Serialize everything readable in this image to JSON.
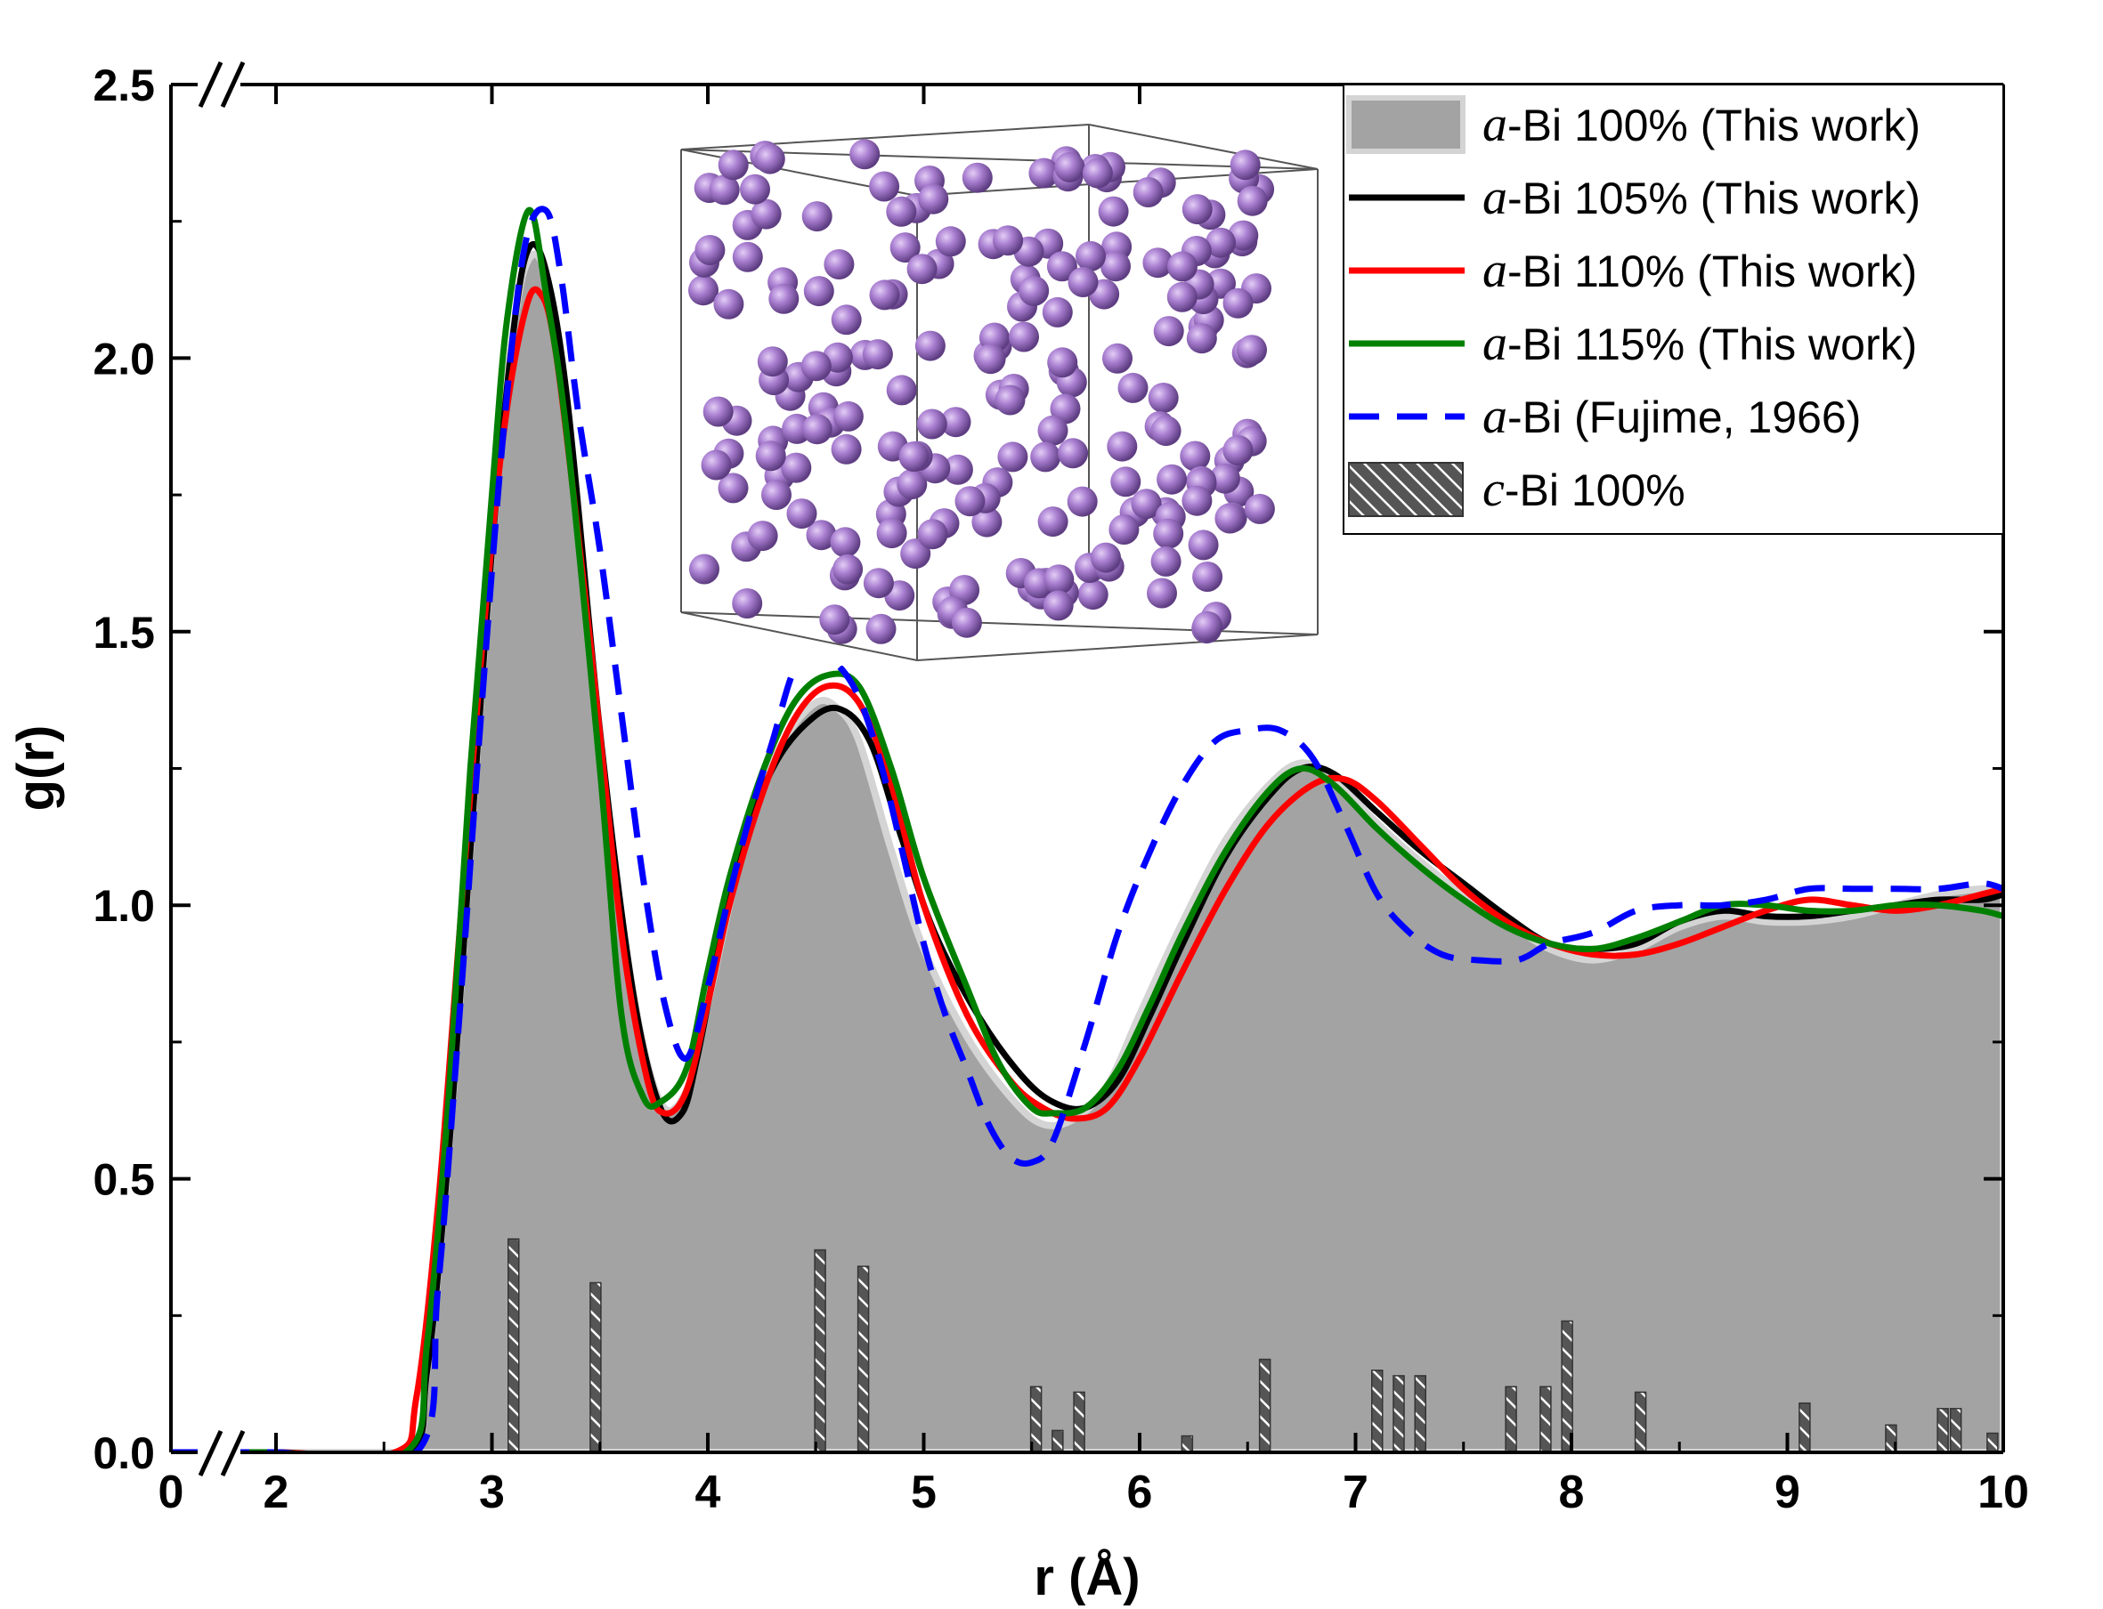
{
  "chart_data": {
    "type": "line",
    "xlabel": "r (Å)",
    "ylabel": "g(r)",
    "xlim": [
      0,
      10
    ],
    "ylim": [
      0,
      2.5
    ],
    "axis_break": {
      "axis": "x",
      "after": 0,
      "resume": 2
    },
    "x_ticks": [
      {
        "value": 0,
        "label": "0"
      },
      {
        "value": 2,
        "label": "2"
      },
      {
        "value": 3,
        "label": "3"
      },
      {
        "value": 4,
        "label": "4"
      },
      {
        "value": 5,
        "label": "5"
      },
      {
        "value": 6,
        "label": "6"
      },
      {
        "value": 7,
        "label": "7"
      },
      {
        "value": 8,
        "label": "8"
      },
      {
        "value": 9,
        "label": "9"
      },
      {
        "value": 10,
        "label": "10"
      }
    ],
    "y_ticks": [
      {
        "value": 0,
        "label": "0.0"
      },
      {
        "value": 0.5,
        "label": "0.5"
      },
      {
        "value": 1.0,
        "label": "1.0"
      },
      {
        "value": 1.5,
        "label": "1.5"
      },
      {
        "value": 2.0,
        "label": "2.0"
      },
      {
        "value": 2.5,
        "label": "2.5"
      }
    ],
    "legend_position": "top-right",
    "series": [
      {
        "name": "a-Bi 100% (This work)",
        "prefix": "a",
        "suffix": "-Bi 100% (This work)",
        "style": "area",
        "color": "#a3a3a3",
        "points": [
          [
            0,
            0
          ],
          [
            2,
            0
          ],
          [
            2.6,
            0
          ],
          [
            2.7,
            0.15
          ],
          [
            2.8,
            0.55
          ],
          [
            2.9,
            1.1
          ],
          [
            3.0,
            1.65
          ],
          [
            3.1,
            2.05
          ],
          [
            3.17,
            2.18
          ],
          [
            3.25,
            2.15
          ],
          [
            3.35,
            1.9
          ],
          [
            3.5,
            1.3
          ],
          [
            3.65,
            0.85
          ],
          [
            3.78,
            0.64
          ],
          [
            3.9,
            0.66
          ],
          [
            4.0,
            0.82
          ],
          [
            4.1,
            1.0
          ],
          [
            4.2,
            1.16
          ],
          [
            4.35,
            1.3
          ],
          [
            4.5,
            1.37
          ],
          [
            4.6,
            1.36
          ],
          [
            4.7,
            1.3
          ],
          [
            4.85,
            1.1
          ],
          [
            5.0,
            0.92
          ],
          [
            5.2,
            0.76
          ],
          [
            5.4,
            0.65
          ],
          [
            5.55,
            0.6
          ],
          [
            5.7,
            0.61
          ],
          [
            5.85,
            0.67
          ],
          [
            6.0,
            0.8
          ],
          [
            6.2,
            0.97
          ],
          [
            6.4,
            1.12
          ],
          [
            6.6,
            1.22
          ],
          [
            6.75,
            1.26
          ],
          [
            6.9,
            1.23
          ],
          [
            7.1,
            1.15
          ],
          [
            7.3,
            1.08
          ],
          [
            7.5,
            1.02
          ],
          [
            7.7,
            0.97
          ],
          [
            7.9,
            0.92
          ],
          [
            8.1,
            0.9
          ],
          [
            8.3,
            0.92
          ],
          [
            8.5,
            0.96
          ],
          [
            8.7,
            0.98
          ],
          [
            8.9,
            0.97
          ],
          [
            9.1,
            0.97
          ],
          [
            9.3,
            0.98
          ],
          [
            9.5,
            1.0
          ],
          [
            9.7,
            1.02
          ],
          [
            9.9,
            1.03
          ],
          [
            10.0,
            1.03
          ]
        ]
      },
      {
        "name": "a-Bi 105% (This work)",
        "prefix": "a",
        "suffix": "-Bi 105% (This work)",
        "style": "solid",
        "color": "#000000",
        "points": [
          [
            0,
            0
          ],
          [
            2,
            0
          ],
          [
            2.6,
            0
          ],
          [
            2.7,
            0.15
          ],
          [
            2.8,
            0.55
          ],
          [
            2.9,
            1.1
          ],
          [
            3.0,
            1.65
          ],
          [
            3.1,
            2.05
          ],
          [
            3.17,
            2.2
          ],
          [
            3.25,
            2.16
          ],
          [
            3.35,
            1.92
          ],
          [
            3.5,
            1.32
          ],
          [
            3.65,
            0.85
          ],
          [
            3.78,
            0.63
          ],
          [
            3.88,
            0.62
          ],
          [
            3.95,
            0.72
          ],
          [
            4.05,
            0.92
          ],
          [
            4.15,
            1.1
          ],
          [
            4.3,
            1.25
          ],
          [
            4.45,
            1.33
          ],
          [
            4.6,
            1.36
          ],
          [
            4.75,
            1.3
          ],
          [
            4.9,
            1.12
          ],
          [
            5.05,
            0.95
          ],
          [
            5.25,
            0.8
          ],
          [
            5.45,
            0.69
          ],
          [
            5.6,
            0.64
          ],
          [
            5.75,
            0.63
          ],
          [
            5.9,
            0.68
          ],
          [
            6.05,
            0.8
          ],
          [
            6.2,
            0.93
          ],
          [
            6.4,
            1.09
          ],
          [
            6.6,
            1.2
          ],
          [
            6.75,
            1.25
          ],
          [
            6.9,
            1.24
          ],
          [
            7.1,
            1.17
          ],
          [
            7.3,
            1.1
          ],
          [
            7.5,
            1.04
          ],
          [
            7.7,
            0.98
          ],
          [
            7.9,
            0.93
          ],
          [
            8.1,
            0.92
          ],
          [
            8.3,
            0.93
          ],
          [
            8.5,
            0.97
          ],
          [
            8.7,
            0.99
          ],
          [
            8.9,
            0.98
          ],
          [
            9.1,
            0.98
          ],
          [
            9.3,
            0.99
          ],
          [
            9.5,
            1.0
          ],
          [
            9.7,
            1.01
          ],
          [
            9.9,
            1.01
          ],
          [
            10.0,
            1.02
          ]
        ]
      },
      {
        "name": "a-Bi 110% (This work)",
        "prefix": "a",
        "suffix": "-Bi 110% (This work)",
        "style": "solid",
        "color": "#ff0000",
        "points": [
          [
            0,
            0
          ],
          [
            2,
            0
          ],
          [
            2.55,
            0
          ],
          [
            2.65,
            0.1
          ],
          [
            2.75,
            0.45
          ],
          [
            2.85,
            0.95
          ],
          [
            2.95,
            1.45
          ],
          [
            3.05,
            1.85
          ],
          [
            3.15,
            2.08
          ],
          [
            3.22,
            2.12
          ],
          [
            3.3,
            2.0
          ],
          [
            3.45,
            1.5
          ],
          [
            3.6,
            0.95
          ],
          [
            3.72,
            0.68
          ],
          [
            3.8,
            0.62
          ],
          [
            3.9,
            0.66
          ],
          [
            4.0,
            0.82
          ],
          [
            4.1,
            1.0
          ],
          [
            4.25,
            1.2
          ],
          [
            4.4,
            1.34
          ],
          [
            4.55,
            1.4
          ],
          [
            4.7,
            1.37
          ],
          [
            4.85,
            1.22
          ],
          [
            5.0,
            1.0
          ],
          [
            5.2,
            0.8
          ],
          [
            5.4,
            0.68
          ],
          [
            5.55,
            0.63
          ],
          [
            5.7,
            0.61
          ],
          [
            5.85,
            0.63
          ],
          [
            6.0,
            0.72
          ],
          [
            6.2,
            0.88
          ],
          [
            6.4,
            1.03
          ],
          [
            6.6,
            1.15
          ],
          [
            6.8,
            1.22
          ],
          [
            6.95,
            1.23
          ],
          [
            7.1,
            1.19
          ],
          [
            7.3,
            1.11
          ],
          [
            7.5,
            1.03
          ],
          [
            7.7,
            0.97
          ],
          [
            7.9,
            0.93
          ],
          [
            8.1,
            0.91
          ],
          [
            8.3,
            0.91
          ],
          [
            8.5,
            0.93
          ],
          [
            8.7,
            0.96
          ],
          [
            8.9,
            0.99
          ],
          [
            9.1,
            1.01
          ],
          [
            9.3,
            1.0
          ],
          [
            9.5,
            0.99
          ],
          [
            9.7,
            1.0
          ],
          [
            9.9,
            1.02
          ],
          [
            10.0,
            1.03
          ]
        ]
      },
      {
        "name": "a-Bi 115% (This work)",
        "prefix": "a",
        "suffix": "-Bi 115% (This work)",
        "style": "solid",
        "color": "#008000",
        "points": [
          [
            0,
            0
          ],
          [
            2,
            0
          ],
          [
            2.6,
            0
          ],
          [
            2.7,
            0.2
          ],
          [
            2.8,
            0.65
          ],
          [
            2.9,
            1.25
          ],
          [
            3.0,
            1.75
          ],
          [
            3.07,
            2.07
          ],
          [
            3.17,
            2.27
          ],
          [
            3.25,
            2.12
          ],
          [
            3.35,
            1.85
          ],
          [
            3.5,
            1.25
          ],
          [
            3.6,
            0.8
          ],
          [
            3.7,
            0.65
          ],
          [
            3.78,
            0.64
          ],
          [
            3.9,
            0.7
          ],
          [
            4.0,
            0.88
          ],
          [
            4.1,
            1.05
          ],
          [
            4.25,
            1.24
          ],
          [
            4.4,
            1.37
          ],
          [
            4.55,
            1.42
          ],
          [
            4.7,
            1.4
          ],
          [
            4.85,
            1.25
          ],
          [
            5.0,
            1.05
          ],
          [
            5.2,
            0.85
          ],
          [
            5.35,
            0.71
          ],
          [
            5.5,
            0.63
          ],
          [
            5.6,
            0.62
          ],
          [
            5.75,
            0.63
          ],
          [
            5.9,
            0.7
          ],
          [
            6.05,
            0.82
          ],
          [
            6.2,
            0.95
          ],
          [
            6.4,
            1.1
          ],
          [
            6.6,
            1.21
          ],
          [
            6.75,
            1.25
          ],
          [
            6.9,
            1.22
          ],
          [
            7.1,
            1.14
          ],
          [
            7.3,
            1.07
          ],
          [
            7.5,
            1.01
          ],
          [
            7.7,
            0.96
          ],
          [
            7.9,
            0.93
          ],
          [
            8.1,
            0.92
          ],
          [
            8.3,
            0.94
          ],
          [
            8.5,
            0.97
          ],
          [
            8.7,
            1.0
          ],
          [
            8.9,
            1.0
          ],
          [
            9.1,
            0.99
          ],
          [
            9.3,
            0.99
          ],
          [
            9.5,
            1.0
          ],
          [
            9.7,
            1.0
          ],
          [
            9.9,
            0.99
          ],
          [
            10.0,
            0.98
          ]
        ]
      },
      {
        "name": "a-Bi (Fujime, 1966)",
        "prefix": "a",
        "suffix": "-Bi (Fujime, 1966)",
        "style": "dashed",
        "color": "#0000ff",
        "points": [
          [
            0,
            0
          ],
          [
            2,
            0
          ],
          [
            2.65,
            0
          ],
          [
            2.75,
            0.3
          ],
          [
            2.85,
            0.8
          ],
          [
            2.95,
            1.35
          ],
          [
            3.05,
            1.85
          ],
          [
            3.15,
            2.2
          ],
          [
            3.25,
            2.27
          ],
          [
            3.32,
            2.15
          ],
          [
            3.4,
            1.9
          ],
          [
            3.5,
            1.65
          ],
          [
            3.6,
            1.35
          ],
          [
            3.7,
            1.05
          ],
          [
            3.8,
            0.82
          ],
          [
            3.9,
            0.72
          ],
          [
            4.0,
            0.85
          ],
          [
            4.1,
            1.02
          ],
          [
            4.2,
            1.17
          ],
          [
            4.3,
            1.3
          ],
          [
            4.4,
            1.43
          ],
          [
            4.5,
            1.46
          ],
          [
            4.6,
            1.44
          ],
          [
            4.7,
            1.38
          ],
          [
            4.8,
            1.26
          ],
          [
            4.9,
            1.1
          ],
          [
            5.0,
            0.93
          ],
          [
            5.1,
            0.8
          ],
          [
            5.2,
            0.7
          ],
          [
            5.3,
            0.6
          ],
          [
            5.4,
            0.54
          ],
          [
            5.5,
            0.53
          ],
          [
            5.6,
            0.57
          ],
          [
            5.75,
            0.75
          ],
          [
            5.9,
            0.95
          ],
          [
            6.05,
            1.1
          ],
          [
            6.2,
            1.22
          ],
          [
            6.35,
            1.3
          ],
          [
            6.5,
            1.32
          ],
          [
            6.65,
            1.32
          ],
          [
            6.8,
            1.27
          ],
          [
            6.95,
            1.15
          ],
          [
            7.1,
            1.02
          ],
          [
            7.25,
            0.95
          ],
          [
            7.4,
            0.91
          ],
          [
            7.55,
            0.9
          ],
          [
            7.75,
            0.9
          ],
          [
            7.9,
            0.93
          ],
          [
            8.1,
            0.95
          ],
          [
            8.3,
            0.99
          ],
          [
            8.5,
            1.0
          ],
          [
            8.7,
            1.0
          ],
          [
            8.9,
            1.01
          ],
          [
            9.1,
            1.03
          ],
          [
            9.3,
            1.03
          ],
          [
            9.5,
            1.03
          ],
          [
            9.7,
            1.03
          ],
          [
            9.9,
            1.04
          ],
          [
            10.0,
            1.03
          ]
        ]
      },
      {
        "name": "c-Bi 100%",
        "prefix": "c",
        "suffix": "-Bi 100%",
        "style": "hatched-bars",
        "color": "#555555",
        "bars": [
          [
            3.1,
            0.39
          ],
          [
            3.48,
            0.31
          ],
          [
            4.52,
            0.37
          ],
          [
            4.72,
            0.34
          ],
          [
            5.52,
            0.12
          ],
          [
            5.62,
            0.04
          ],
          [
            5.72,
            0.11
          ],
          [
            6.22,
            0.03
          ],
          [
            6.58,
            0.17
          ],
          [
            7.1,
            0.15
          ],
          [
            7.2,
            0.14
          ],
          [
            7.3,
            0.14
          ],
          [
            7.72,
            0.12
          ],
          [
            7.88,
            0.12
          ],
          [
            7.98,
            0.24
          ],
          [
            8.32,
            0.11
          ],
          [
            9.08,
            0.09
          ],
          [
            9.48,
            0.05
          ],
          [
            9.72,
            0.08
          ],
          [
            9.78,
            0.08
          ],
          [
            9.95,
            0.035
          ]
        ]
      }
    ]
  },
  "inset": {
    "description_hidden": true,
    "atom_color": "#a97fd1",
    "box_color": "#555555"
  }
}
